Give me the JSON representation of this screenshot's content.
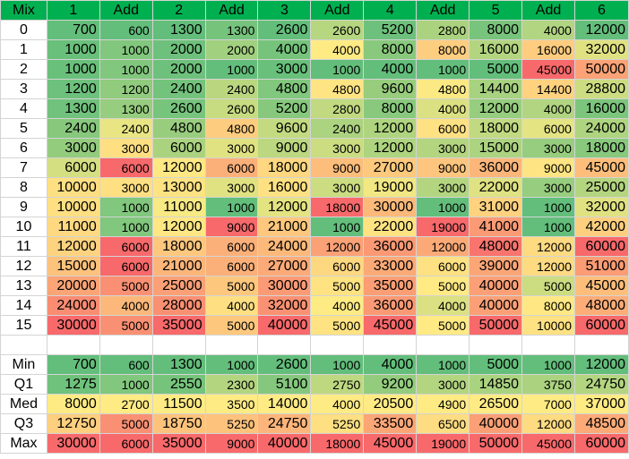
{
  "header": [
    "Mix",
    "1",
    "Add",
    "2",
    "Add",
    "3",
    "Add",
    "4",
    "Add",
    "5",
    "Add",
    "6"
  ],
  "rows": [
    {
      "label": "0",
      "values": [
        700,
        600,
        1300,
        1300,
        2600,
        2600,
        5200,
        2800,
        8000,
        4000,
        12000
      ]
    },
    {
      "label": "1",
      "values": [
        1000,
        1000,
        2000,
        2000,
        4000,
        4000,
        8000,
        8000,
        16000,
        16000,
        32000
      ]
    },
    {
      "label": "2",
      "values": [
        1000,
        1000,
        2000,
        1000,
        3000,
        1000,
        4000,
        1000,
        5000,
        45000,
        50000
      ]
    },
    {
      "label": "3",
      "values": [
        1200,
        1200,
        2400,
        2400,
        4800,
        4800,
        9600,
        4800,
        14400,
        14400,
        28800
      ]
    },
    {
      "label": "4",
      "values": [
        1300,
        1300,
        2600,
        2600,
        5200,
        2800,
        8000,
        4000,
        12000,
        4000,
        16000
      ]
    },
    {
      "label": "5",
      "values": [
        2400,
        2400,
        4800,
        4800,
        9600,
        2400,
        12000,
        6000,
        18000,
        6000,
        24000
      ]
    },
    {
      "label": "6",
      "values": [
        3000,
        3000,
        6000,
        3000,
        9000,
        3000,
        12000,
        3000,
        15000,
        3000,
        18000
      ]
    },
    {
      "label": "7",
      "values": [
        6000,
        6000,
        12000,
        6000,
        18000,
        9000,
        27000,
        9000,
        36000,
        9000,
        45000
      ]
    },
    {
      "label": "8",
      "values": [
        10000,
        3000,
        13000,
        3000,
        16000,
        3000,
        19000,
        3000,
        22000,
        3000,
        25000
      ]
    },
    {
      "label": "9",
      "values": [
        10000,
        1000,
        11000,
        1000,
        12000,
        18000,
        30000,
        1000,
        31000,
        1000,
        32000
      ]
    },
    {
      "label": "10",
      "values": [
        11000,
        1000,
        12000,
        9000,
        21000,
        1000,
        22000,
        19000,
        41000,
        1000,
        42000
      ]
    },
    {
      "label": "11",
      "values": [
        12000,
        6000,
        18000,
        6000,
        24000,
        12000,
        36000,
        12000,
        48000,
        12000,
        60000
      ]
    },
    {
      "label": "12",
      "values": [
        15000,
        6000,
        21000,
        6000,
        27000,
        6000,
        33000,
        6000,
        39000,
        12000,
        51000
      ]
    },
    {
      "label": "13",
      "values": [
        20000,
        5000,
        25000,
        5000,
        30000,
        5000,
        35000,
        5000,
        40000,
        5000,
        45000
      ]
    },
    {
      "label": "14",
      "values": [
        24000,
        4000,
        28000,
        4000,
        32000,
        4000,
        36000,
        4000,
        40000,
        8000,
        48000
      ]
    },
    {
      "label": "15",
      "values": [
        30000,
        5000,
        35000,
        5000,
        40000,
        5000,
        45000,
        5000,
        50000,
        10000,
        60000
      ]
    }
  ],
  "stats": [
    {
      "label": "Min",
      "values": [
        700,
        600,
        1300,
        1000,
        2600,
        1000,
        4000,
        1000,
        5000,
        1000,
        12000
      ]
    },
    {
      "label": "Q1",
      "values": [
        1275,
        1000,
        2550,
        2300,
        5100,
        2750,
        9200,
        3000,
        14850,
        3750,
        24750
      ]
    },
    {
      "label": "Med",
      "values": [
        8000,
        2700,
        11500,
        3500,
        14000,
        4000,
        20500,
        4900,
        26500,
        7000,
        37000
      ]
    },
    {
      "label": "Q3",
      "values": [
        12750,
        5000,
        18750,
        5250,
        24750,
        5250,
        33500,
        6500,
        40000,
        12000,
        48500
      ]
    },
    {
      "label": "Max",
      "values": [
        30000,
        6000,
        35000,
        9000,
        40000,
        18000,
        45000,
        19000,
        50000,
        45000,
        60000
      ]
    }
  ],
  "colors": {
    "header": "#00b050",
    "scale_low": "#63be7b",
    "scale_mid": "#ffeb84",
    "scale_high": "#f8696b",
    "grid": "#d4d4d4"
  }
}
